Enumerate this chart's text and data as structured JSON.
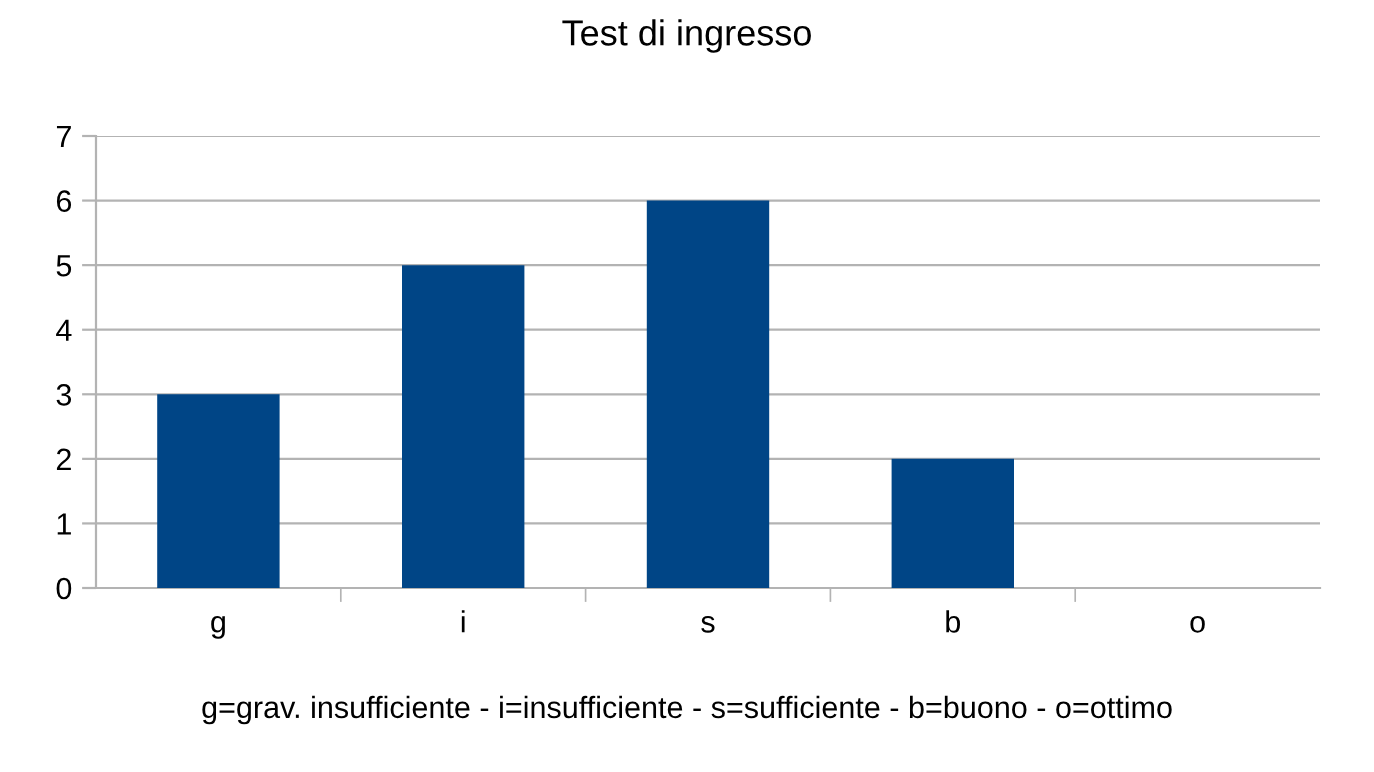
{
  "chart_data": {
    "type": "bar",
    "title": "Test di ingresso",
    "categories": [
      "g",
      "i",
      "s",
      "b",
      "o"
    ],
    "values": [
      3,
      5,
      6,
      2,
      0
    ],
    "color": "#004586",
    "ylim": [
      0,
      7
    ],
    "yticks": [
      0,
      1,
      2,
      3,
      4,
      5,
      6,
      7
    ],
    "grid": "y",
    "annotations": [
      "g=grav. insufficiente - i=insufficiente - s=sufficiente - b=buono - o=ottimo"
    ]
  }
}
